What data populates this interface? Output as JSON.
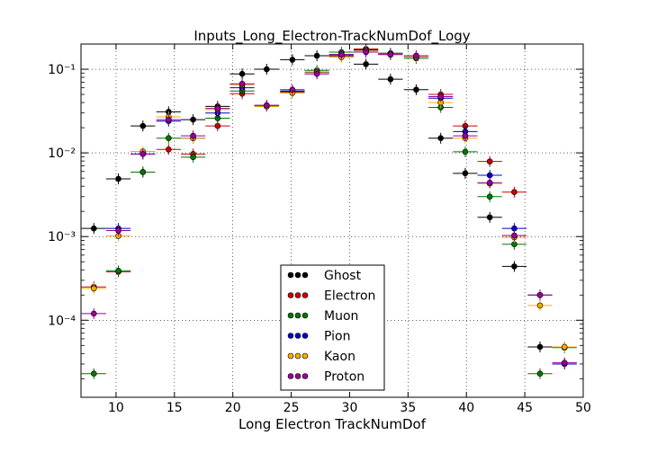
{
  "chart_data": {
    "type": "scatter",
    "title": "Inputs_Long_Electron-TrackNumDof_Logy",
    "xlabel": "Long Electron TrackNumDof",
    "ylabel": "",
    "xlim": [
      7,
      50
    ],
    "ylim": [
      1.2e-05,
      0.2
    ],
    "y_scale": "log",
    "grid": true,
    "legend_position": "lower-center",
    "x_ticks": [
      10,
      15,
      20,
      25,
      30,
      35,
      40,
      45,
      50
    ],
    "x_tick_labels": [
      "10",
      "15",
      "20",
      "25",
      "30",
      "35",
      "40",
      "45",
      "50"
    ],
    "y_ticks": [
      0.0001,
      0.001,
      0.01,
      0.1
    ],
    "y_tick_labels": [
      "10⁻⁴",
      "10⁻³",
      "10⁻²",
      "10⁻¹"
    ],
    "bin_half_width": 1.05,
    "series": [
      {
        "name": "Ghost",
        "color": "#000000",
        "points": [
          {
            "x": 8.1,
            "y": 0.00125
          },
          {
            "x": 10.2,
            "y": 0.0049
          },
          {
            "x": 12.3,
            "y": 0.021
          },
          {
            "x": 14.5,
            "y": 0.031
          },
          {
            "x": 16.6,
            "y": 0.025
          },
          {
            "x": 18.7,
            "y": 0.036
          },
          {
            "x": 20.8,
            "y": 0.088
          },
          {
            "x": 22.9,
            "y": 0.1
          },
          {
            "x": 25.1,
            "y": 0.13
          },
          {
            "x": 27.2,
            "y": 0.145
          },
          {
            "x": 29.3,
            "y": 0.145
          },
          {
            "x": 31.4,
            "y": 0.115
          },
          {
            "x": 33.5,
            "y": 0.076
          },
          {
            "x": 35.7,
            "y": 0.057
          },
          {
            "x": 37.8,
            "y": 0.015
          },
          {
            "x": 39.9,
            "y": 0.0057
          },
          {
            "x": 42.0,
            "y": 0.0017
          },
          {
            "x": 44.1,
            "y": 0.00044
          },
          {
            "x": 46.3,
            "y": 4.8e-05
          }
        ]
      },
      {
        "name": "Electron",
        "color": "#cc0000",
        "points": [
          {
            "x": 8.1,
            "y": 0.00025
          },
          {
            "x": 10.2,
            "y": 0.00038
          },
          {
            "x": 12.3,
            "y": 0.0059
          },
          {
            "x": 14.5,
            "y": 0.011
          },
          {
            "x": 16.6,
            "y": 0.0097
          },
          {
            "x": 18.7,
            "y": 0.021
          },
          {
            "x": 20.8,
            "y": 0.051
          },
          {
            "x": 22.9,
            "y": 0.036
          },
          {
            "x": 25.1,
            "y": 0.053
          },
          {
            "x": 27.2,
            "y": 0.092
          },
          {
            "x": 29.3,
            "y": 0.14
          },
          {
            "x": 31.4,
            "y": 0.175
          },
          {
            "x": 33.5,
            "y": 0.155
          },
          {
            "x": 35.7,
            "y": 0.145
          },
          {
            "x": 37.8,
            "y": 0.05
          },
          {
            "x": 39.9,
            "y": 0.021
          },
          {
            "x": 42.0,
            "y": 0.0079
          },
          {
            "x": 44.1,
            "y": 0.0034
          }
        ]
      },
      {
        "name": "Muon",
        "color": "#007700",
        "points": [
          {
            "x": 8.1,
            "y": 2.3e-05
          },
          {
            "x": 10.2,
            "y": 0.00039
          },
          {
            "x": 12.3,
            "y": 0.0059
          },
          {
            "x": 14.5,
            "y": 0.015
          },
          {
            "x": 16.6,
            "y": 0.0089
          },
          {
            "x": 18.7,
            "y": 0.026
          },
          {
            "x": 20.8,
            "y": 0.055
          },
          {
            "x": 22.9,
            "y": 0.036
          },
          {
            "x": 25.1,
            "y": 0.054
          },
          {
            "x": 27.2,
            "y": 0.097
          },
          {
            "x": 29.3,
            "y": 0.16
          },
          {
            "x": 31.4,
            "y": 0.17
          },
          {
            "x": 33.5,
            "y": 0.155
          },
          {
            "x": 35.7,
            "y": 0.135
          },
          {
            "x": 37.8,
            "y": 0.035
          },
          {
            "x": 39.9,
            "y": 0.0103
          },
          {
            "x": 42.0,
            "y": 0.003
          },
          {
            "x": 44.1,
            "y": 0.00081
          },
          {
            "x": 46.3,
            "y": 2.3e-05
          },
          {
            "x": 48.4,
            "y": 4.7e-05
          }
        ]
      },
      {
        "name": "Pion",
        "color": "#0000cc",
        "points": [
          {
            "x": 10.2,
            "y": 0.00125
          },
          {
            "x": 12.3,
            "y": 0.0097
          },
          {
            "x": 14.5,
            "y": 0.024
          },
          {
            "x": 16.6,
            "y": 0.015
          },
          {
            "x": 18.7,
            "y": 0.03
          },
          {
            "x": 20.8,
            "y": 0.06
          },
          {
            "x": 22.9,
            "y": 0.037
          },
          {
            "x": 25.1,
            "y": 0.055
          },
          {
            "x": 27.2,
            "y": 0.092
          },
          {
            "x": 29.3,
            "y": 0.15
          },
          {
            "x": 31.4,
            "y": 0.17
          },
          {
            "x": 33.5,
            "y": 0.15
          },
          {
            "x": 35.7,
            "y": 0.14
          },
          {
            "x": 37.8,
            "y": 0.045
          },
          {
            "x": 39.9,
            "y": 0.018
          },
          {
            "x": 42.0,
            "y": 0.0054
          },
          {
            "x": 44.1,
            "y": 0.00125
          },
          {
            "x": 46.3,
            "y": 0.0002
          },
          {
            "x": 48.4,
            "y": 3e-05
          }
        ]
      },
      {
        "name": "Kaon",
        "color": "#ffaa00",
        "points": [
          {
            "x": 8.1,
            "y": 0.00024
          },
          {
            "x": 10.2,
            "y": 0.00102
          },
          {
            "x": 12.3,
            "y": 0.0104
          },
          {
            "x": 14.5,
            "y": 0.027
          },
          {
            "x": 16.6,
            "y": 0.015
          },
          {
            "x": 18.7,
            "y": 0.033
          },
          {
            "x": 20.8,
            "y": 0.065
          },
          {
            "x": 22.9,
            "y": 0.036
          },
          {
            "x": 25.1,
            "y": 0.052
          },
          {
            "x": 27.2,
            "y": 0.091
          },
          {
            "x": 29.3,
            "y": 0.14
          },
          {
            "x": 31.4,
            "y": 0.165
          },
          {
            "x": 33.5,
            "y": 0.15
          },
          {
            "x": 35.7,
            "y": 0.14
          },
          {
            "x": 37.8,
            "y": 0.04
          },
          {
            "x": 39.9,
            "y": 0.015
          },
          {
            "x": 42.0,
            "y": 0.0043
          },
          {
            "x": 44.1,
            "y": 0.00098
          },
          {
            "x": 46.3,
            "y": 0.00015
          },
          {
            "x": 48.4,
            "y": 4.8e-05
          }
        ]
      },
      {
        "name": "Proton",
        "color": "#990099",
        "points": [
          {
            "x": 8.1,
            "y": 0.00012
          },
          {
            "x": 10.2,
            "y": 0.00118
          },
          {
            "x": 12.3,
            "y": 0.0097
          },
          {
            "x": 14.5,
            "y": 0.025
          },
          {
            "x": 16.6,
            "y": 0.016
          },
          {
            "x": 18.7,
            "y": 0.034
          },
          {
            "x": 20.8,
            "y": 0.067
          },
          {
            "x": 22.9,
            "y": 0.037
          },
          {
            "x": 25.1,
            "y": 0.057
          },
          {
            "x": 27.2,
            "y": 0.088
          },
          {
            "x": 29.3,
            "y": 0.15
          },
          {
            "x": 31.4,
            "y": 0.16
          },
          {
            "x": 33.5,
            "y": 0.15
          },
          {
            "x": 35.7,
            "y": 0.145
          },
          {
            "x": 37.8,
            "y": 0.047
          },
          {
            "x": 39.9,
            "y": 0.016
          },
          {
            "x": 42.0,
            "y": 0.0044
          },
          {
            "x": 44.1,
            "y": 0.00103
          },
          {
            "x": 46.3,
            "y": 0.0002
          },
          {
            "x": 48.4,
            "y": 3.1e-05
          }
        ]
      }
    ]
  }
}
